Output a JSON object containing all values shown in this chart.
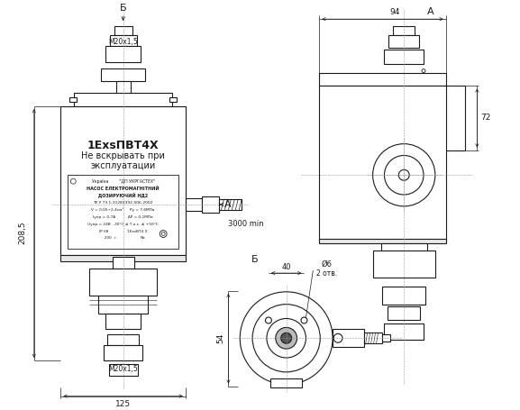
{
  "bg_color": "#ffffff",
  "line_color": "#1a1a1a",
  "label_M20x15_top": "M20x1,5",
  "label_M20x15_bot": "M20x1,5",
  "label_B_top": "Б",
  "label_A_side": "А",
  "label_B_bottom": "Б",
  "label_208_5": "208,5",
  "label_125": "125",
  "label_94": "94",
  "label_72": "72",
  "label_40": "40",
  "label_54": "54",
  "label_o6": "Ø6",
  "label_2otv": "2 отв.",
  "label_3000min": "3000 min",
  "label_A_arrow": "А",
  "text_line1": "1ExsПВТ4Х",
  "text_line2": "Не вскрывать при",
  "text_line3": "эксплуатации",
  "box_l1": "Україна        \"ДП УКРГАСТЕХ\"",
  "box_l2": "НАСОС ЕЛЕКТРОМАГНІТНИЙ",
  "box_l3": "ДОЗИРУЮЧИЙ НД2",
  "box_l4": "ТУ У 73.1-31283392-006-2002",
  "box_l5": "V = 0,05÷2,4см³     Ру = 7,6МПа",
  "box_l6": "Іупр.= 0,7А          ΔP = 0,1МПа",
  "box_l7": "Uупр.= 24В  -30°С ≤ Т о.с. ≤ +50°С",
  "box_l8": "IP 68               1ExsВТ4 Х",
  "box_l9": "  200  г.                   №"
}
